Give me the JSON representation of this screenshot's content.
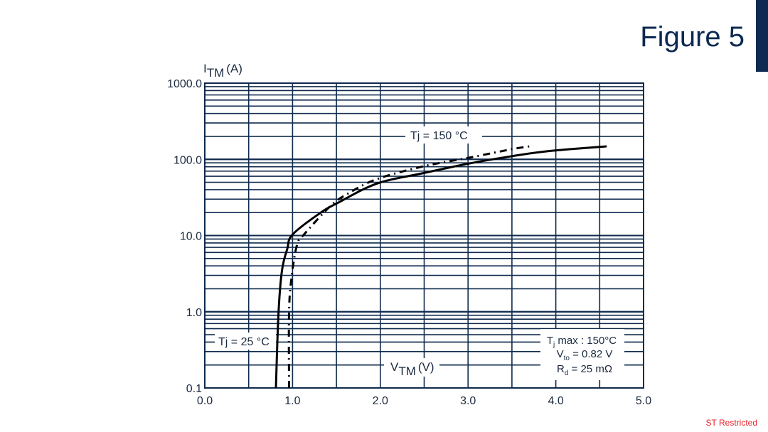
{
  "slide": {
    "title": "Figure 5",
    "footer": "ST Restricted",
    "colors": {
      "title": "#0c2a52",
      "accent_bar": "#0c2a52",
      "grid": "#0f2a4d",
      "curve": "#000000",
      "footer": "#e8202a"
    }
  },
  "chart_data": {
    "type": "line",
    "title": "",
    "xlabel": "VTM (V)",
    "ylabel": "ITM (A)",
    "xlabel_main": "V",
    "xlabel_sub": "TM",
    "xlabel_unit": "(V)",
    "ylabel_main": "I",
    "ylabel_sub": "TM",
    "ylabel_unit": "(A)",
    "xscale": "linear",
    "yscale": "log",
    "xlim": [
      0.0,
      5.0
    ],
    "ylim": [
      0.1,
      1000.0
    ],
    "x_ticks": [
      "0.0",
      "1.0",
      "2.0",
      "3.0",
      "4.0",
      "5.0"
    ],
    "y_ticks": [
      "0.1",
      "1.0",
      "10.0",
      "100.0",
      "1000.0"
    ],
    "grid": true,
    "x_grid_step": 0.5,
    "series": [
      {
        "name": "Tj = 25 °C",
        "style": "solid",
        "x": [
          0.81,
          0.84,
          0.88,
          0.94,
          1.0,
          1.31,
          1.52,
          1.96,
          2.49,
          3.01,
          3.5,
          3.91,
          4.58
        ],
        "y": [
          0.1,
          0.98,
          3.5,
          6.7,
          10.3,
          19.6,
          27,
          48,
          66,
          88,
          110,
          128,
          148
        ]
      },
      {
        "name": "Tj = 150 °C",
        "style": "dash-dot",
        "x": [
          0.96,
          0.96,
          0.99,
          1.05,
          1.13,
          1.43,
          1.64,
          1.96,
          2.49,
          3.01,
          3.5,
          3.7
        ],
        "y": [
          0.1,
          1.0,
          2.9,
          7.5,
          10.3,
          24.3,
          36,
          55,
          81,
          105,
          136,
          148
        ]
      }
    ],
    "annotations": {
      "tj150_label": "Tj = 150 °C",
      "tj25_label": "Tj = 25 °C",
      "params": {
        "line1_main": "T",
        "line1_sub": "j",
        "line1_rest": " max : 150°C",
        "line2_main": "V",
        "line2_sub": "to",
        "line2_rest": " = 0.82 V",
        "line3_main": "R",
        "line3_sub": "d",
        "line3_rest": " = 25 mΩ"
      }
    },
    "legend": "inline-labels"
  }
}
